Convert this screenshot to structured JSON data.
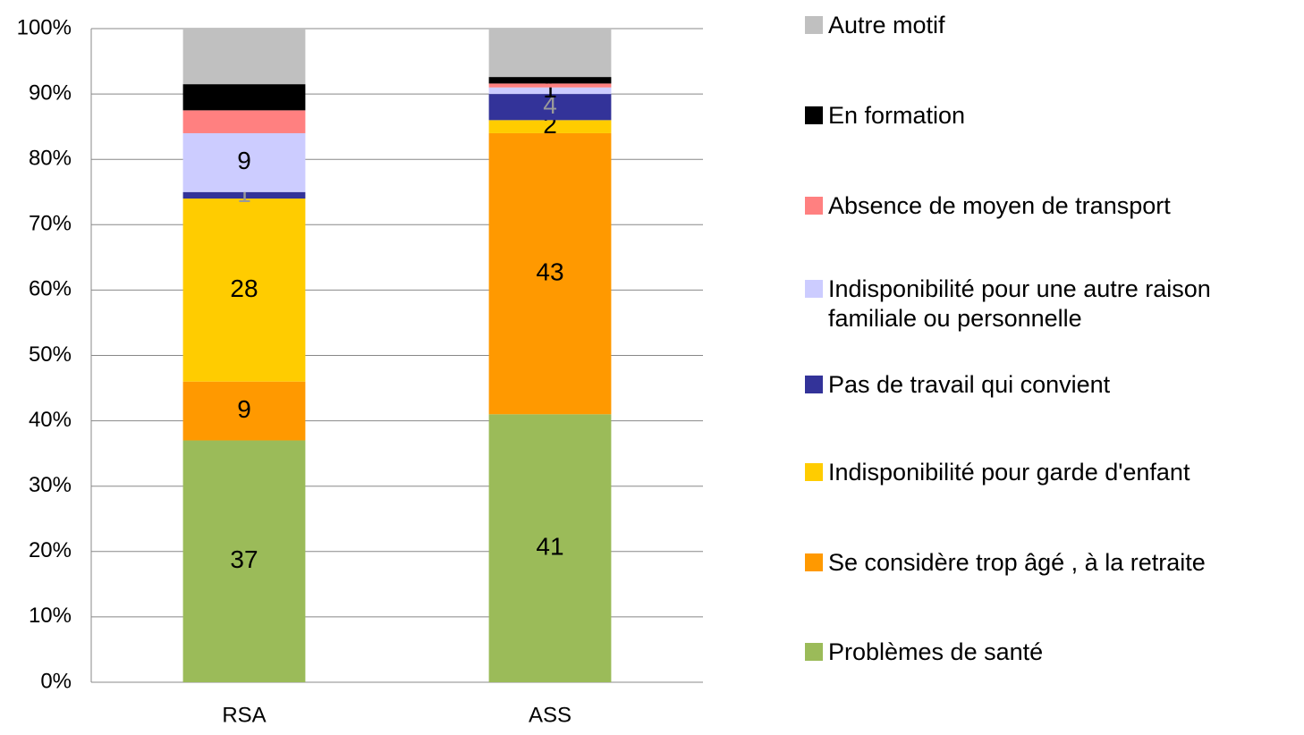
{
  "chart_data": {
    "type": "stacked_bar",
    "categories": [
      "RSA",
      "ASS"
    ],
    "ylim": [
      0,
      100
    ],
    "yticks": [
      {
        "value": 0,
        "label": "0%"
      },
      {
        "value": 10,
        "label": "10%"
      },
      {
        "value": 20,
        "label": "20%"
      },
      {
        "value": 30,
        "label": "30%"
      },
      {
        "value": 40,
        "label": "40%"
      },
      {
        "value": 50,
        "label": "50%"
      },
      {
        "value": 60,
        "label": "60%"
      },
      {
        "value": 70,
        "label": "70%"
      },
      {
        "value": 80,
        "label": "80%"
      },
      {
        "value": 90,
        "label": "90%"
      },
      {
        "value": 100,
        "label": "100%"
      }
    ],
    "grid": true,
    "legend": "right",
    "series": [
      {
        "name": "Problèmes de santé",
        "color": "#9bbb59",
        "values": [
          37,
          41
        ],
        "data_labels": true,
        "label_color": "#000000"
      },
      {
        "name": "Se considère trop âgé , à la retraite",
        "color": "#ff9900",
        "values": [
          9,
          43
        ],
        "data_labels": true,
        "label_color": "#000000"
      },
      {
        "name": "Indisponibilité pour garde d'enfant",
        "color": "#ffcc00",
        "values": [
          28,
          2
        ],
        "data_labels": true,
        "label_color": "#000000"
      },
      {
        "name": "Pas de travail qui convient",
        "color": "#333399",
        "values": [
          1,
          4
        ],
        "data_labels": true,
        "label_color": "#999999"
      },
      {
        "name": "Indisponibilité pour une autre raison familiale ou personnelle",
        "color": "#ccccff",
        "values": [
          9,
          1
        ],
        "data_labels": true,
        "label_color": "#000000"
      },
      {
        "name": "Absence de moyen de transport",
        "color": "#ff8080",
        "values": [
          3.5,
          0.6
        ],
        "data_labels": false,
        "label_color": "#000000"
      },
      {
        "name": "En formation",
        "color": "#000000",
        "values": [
          4,
          1
        ],
        "data_labels": false,
        "label_color": "#000000"
      },
      {
        "name": "Autre motif",
        "color": "#c0c0c0",
        "values": [
          8.5,
          7.4
        ],
        "data_labels": false,
        "label_color": "#000000"
      }
    ]
  }
}
